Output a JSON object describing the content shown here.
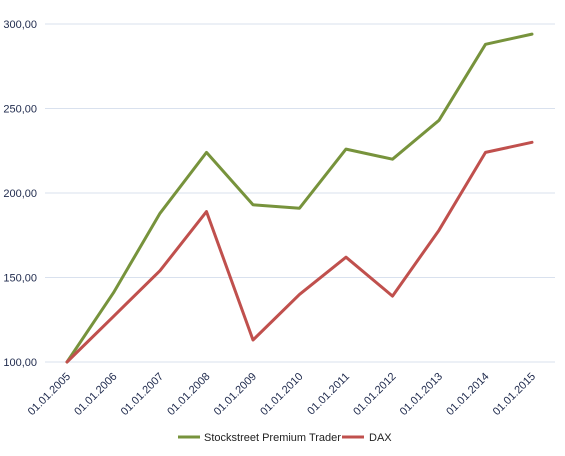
{
  "chart_data": {
    "type": "line",
    "title": "",
    "xlabel": "",
    "ylabel": "",
    "categories": [
      "01.01.2005",
      "01.01.2006",
      "01.01.2007",
      "01.01.2008",
      "01.01.2009",
      "01.01.2010",
      "01.01.2011",
      "01.01.2012",
      "01.01.2013",
      "01.01.2014",
      "01.01.2015"
    ],
    "y_tick_labels": [
      "100,00",
      "150,00",
      "200,00",
      "250,00",
      "300,00"
    ],
    "y_ticks": [
      100,
      150,
      200,
      250,
      300
    ],
    "ylim": [
      100,
      300
    ],
    "grid": true,
    "legend_position": "bottom",
    "series": [
      {
        "name": "Stockstreet Premium Trader",
        "color": "#77933c",
        "values": [
          100,
          141,
          188,
          224,
          193,
          191,
          226,
          220,
          243,
          288,
          294
        ]
      },
      {
        "name": "DAX",
        "color": "#c0504d",
        "values": [
          100,
          127,
          154,
          189,
          113,
          140,
          162,
          139,
          178,
          224,
          230
        ]
      }
    ]
  }
}
